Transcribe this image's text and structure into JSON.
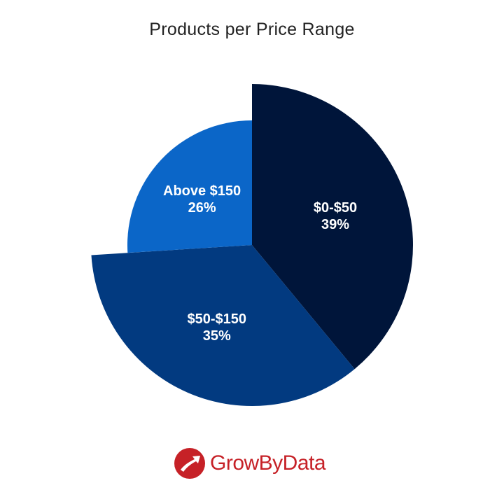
{
  "chart_data": {
    "type": "pie",
    "title": "Products per Price Range",
    "slices": [
      {
        "label": "$0-$50",
        "value": 39,
        "value_label": "39%",
        "color": "#00153a",
        "exploded": true
      },
      {
        "label": "$50-$150",
        "value": 35,
        "value_label": "35%",
        "color": "#023a80",
        "exploded": true
      },
      {
        "label": "Above $150",
        "value": 26,
        "value_label": "26%",
        "color": "#0b66c8",
        "exploded": false
      }
    ],
    "start_angle": "top",
    "direction": "clockwise",
    "legend": "none"
  },
  "brand": {
    "name": "GrowByData",
    "logo_icon": "growbydata-logo-icon",
    "color": "#c62127"
  }
}
